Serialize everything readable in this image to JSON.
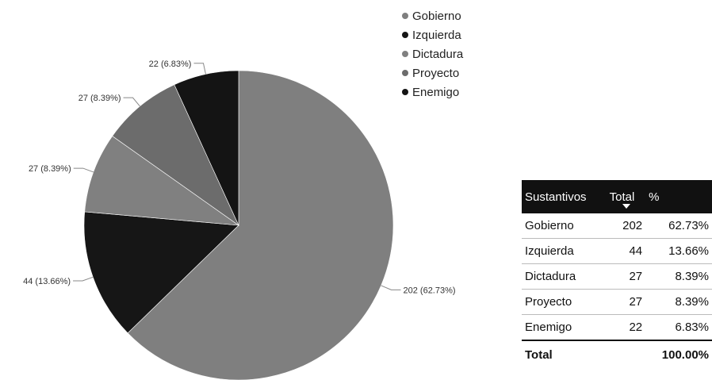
{
  "colors": {
    "Gobierno": "#7f7f7f",
    "Izquierda": "#161616",
    "Dictadura": "#808080",
    "Proyecto": "#6c6c6c",
    "Enemigo": "#141414"
  },
  "chart_data": {
    "type": "pie",
    "categories": [
      "Gobierno",
      "Izquierda",
      "Dictadura",
      "Proyecto",
      "Enemigo"
    ],
    "values": [
      202,
      44,
      27,
      27,
      22
    ],
    "percentages": [
      "62.73%",
      "13.66%",
      "8.39%",
      "8.39%",
      "6.83%"
    ],
    "slice_labels": [
      "202 (62.73%)",
      "44 (13.66%)",
      "27 (8.39%)",
      "27 (8.39%)",
      "22 (6.83%)"
    ],
    "legend": [
      "Gobierno",
      "Izquierda",
      "Dictadura",
      "Proyecto",
      "Enemigo"
    ],
    "legend_position": "top-right",
    "start_angle": "top, clockwise"
  },
  "table": {
    "headers": [
      "Sustantivos",
      "Total",
      "%"
    ],
    "sorted_column": "Total",
    "rows": [
      [
        "Gobierno",
        "202",
        "62.73%"
      ],
      [
        "Izquierda",
        "44",
        "13.66%"
      ],
      [
        "Dictadura",
        "27",
        "8.39%"
      ],
      [
        "Proyecto",
        "27",
        "8.39%"
      ],
      [
        "Enemigo",
        "22",
        "6.83%"
      ]
    ],
    "total": [
      "Total",
      "",
      "100.00%"
    ]
  }
}
